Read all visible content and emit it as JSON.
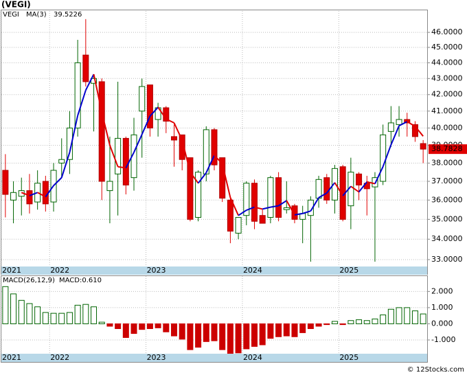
{
  "chart_data": [
    {
      "type": "candlestick",
      "title": "(VEGI)",
      "name": "VEGI",
      "categories": [
        "2021",
        null,
        null,
        null,
        null,
        null,
        "2022",
        null,
        null,
        null,
        null,
        null,
        null,
        null,
        null,
        null,
        null,
        null,
        "2023",
        null,
        null,
        null,
        null,
        null,
        null,
        null,
        null,
        null,
        null,
        null,
        "2024",
        null,
        null,
        null,
        null,
        null,
        null,
        null,
        null,
        null,
        null,
        null,
        "2025",
        null,
        null,
        null,
        null,
        null,
        null,
        null,
        null,
        null,
        null
      ],
      "open": [
        37.6,
        36.0,
        36.2,
        36.5,
        35.9,
        37.0,
        35.9,
        38.0,
        38.2,
        40.0,
        44.5,
        42.7,
        42.8,
        36.5,
        37.4,
        39.4,
        37.2,
        41.0,
        42.6,
        40.5,
        41.2,
        39.5,
        39.6,
        38.3,
        35.1,
        37.4,
        39.9,
        38.3,
        36.0,
        34.3,
        35.2,
        36.9,
        35.2,
        35.1,
        37.2,
        35.5,
        35.7,
        35.0,
        35.2,
        36.1,
        37.2,
        36.0,
        37.8,
        35.7,
        37.4,
        36.9,
        36.7,
        37.0,
        39.8,
        40.2,
        40.5,
        40.2,
        39.1
      ],
      "high": [
        38.5,
        37.0,
        37.2,
        37.4,
        37.6,
        37.3,
        38.0,
        39.4,
        41.0,
        45.5,
        46.9,
        43.2,
        43.0,
        39.5,
        42.8,
        39.5,
        40.6,
        43.0,
        42.6,
        41.5,
        41.3,
        40.2,
        39.6,
        38.3,
        37.6,
        40.1,
        40.0,
        38.3,
        36.1,
        35.0,
        37.0,
        37.1,
        35.5,
        37.3,
        37.5,
        37.0,
        35.8,
        35.7,
        36.2,
        37.3,
        37.4,
        37.9,
        37.9,
        38.3,
        37.5,
        37.3,
        37.5,
        40.2,
        41.3,
        41.3,
        40.9,
        40.4,
        39.3
      ],
      "low": [
        35.1,
        34.8,
        35.2,
        35.3,
        35.5,
        35.4,
        35.4,
        37.2,
        37.4,
        39.5,
        42.5,
        39.8,
        36.0,
        34.8,
        35.2,
        36.3,
        36.5,
        38.3,
        39.5,
        39.5,
        39.7,
        37.8,
        37.6,
        34.9,
        34.9,
        37.0,
        37.6,
        35.9,
        33.8,
        34.0,
        34.7,
        34.5,
        34.8,
        34.8,
        34.9,
        35.3,
        34.8,
        33.8,
        32.9,
        35.6,
        35.8,
        35.3,
        34.9,
        34.5,
        36.0,
        35.2,
        32.9,
        36.8,
        38.9,
        39.5,
        39.5,
        39.2,
        38.0
      ],
      "close": [
        36.3,
        36.4,
        36.5,
        35.8,
        36.9,
        35.8,
        37.6,
        38.2,
        40.0,
        44.0,
        42.8,
        43.0,
        37.0,
        37.0,
        39.4,
        36.8,
        39.6,
        42.5,
        40.0,
        41.2,
        40.4,
        39.3,
        38.2,
        35.0,
        37.5,
        39.9,
        37.9,
        36.1,
        34.4,
        35.1,
        36.9,
        34.9,
        34.8,
        37.2,
        35.1,
        35.6,
        35.0,
        35.3,
        36.0,
        37.1,
        36.0,
        37.7,
        35.0,
        37.5,
        36.8,
        36.6,
        37.2,
        39.6,
        40.3,
        40.5,
        40.3,
        39.5,
        38.7828
      ],
      "ma_name": "MA(3)",
      "ma": [
        null,
        null,
        36.4,
        36.23,
        36.4,
        36.17,
        36.77,
        37.2,
        38.6,
        40.73,
        42.27,
        43.27,
        40.93,
        39.0,
        37.8,
        37.73,
        38.6,
        39.63,
        40.7,
        41.23,
        40.53,
        40.3,
        39.3,
        37.5,
        36.9,
        37.47,
        38.43,
        37.97,
        36.13,
        35.2,
        35.47,
        35.63,
        35.53,
        35.63,
        35.7,
        35.97,
        35.23,
        35.3,
        35.43,
        36.13,
        36.37,
        36.93,
        36.23,
        36.73,
        36.43,
        36.97,
        36.87,
        37.8,
        39.03,
        40.13,
        40.37,
        40.1,
        39.5226
      ],
      "ylim": [
        32.67,
        47.46
      ],
      "log_scale": true,
      "grid": true,
      "yticks": [
        {
          "value": 33,
          "label": "33.0000"
        },
        {
          "value": 34,
          "label": "34.0000"
        },
        {
          "value": 35,
          "label": "35.0000"
        },
        {
          "value": 36,
          "label": "36.0000"
        },
        {
          "value": 37,
          "label": "37.0000"
        },
        {
          "value": 38,
          "label": "38.0000"
        },
        {
          "value": 39,
          "label": "39.0000"
        },
        {
          "value": 40,
          "label": "40.0000"
        },
        {
          "value": 41,
          "label": "41.0000"
        },
        {
          "value": 42,
          "label": "42.0000"
        },
        {
          "value": 43,
          "label": "43.0000"
        },
        {
          "value": 44,
          "label": "44.0000"
        },
        {
          "value": 45,
          "label": "45.0000"
        },
        {
          "value": 46,
          "label": "46.0000"
        }
      ],
      "up_color": "#006400",
      "down_color": "#e00000",
      "ma_up_color": "#0000cc",
      "ma_down_color": "#e00000",
      "name_color": "#008000"
    },
    {
      "type": "bar",
      "title": "MACD(26,12,9)",
      "legend_label": "MACD:0.610",
      "categories": [
        "2021",
        null,
        null,
        null,
        null,
        null,
        "2022",
        null,
        null,
        null,
        null,
        null,
        null,
        null,
        null,
        null,
        null,
        null,
        "2023",
        null,
        null,
        null,
        null,
        null,
        null,
        null,
        null,
        null,
        null,
        null,
        "2024",
        null,
        null,
        null,
        null,
        null,
        null,
        null,
        null,
        null,
        null,
        null,
        "2025",
        null,
        null,
        null,
        null,
        null,
        null,
        null,
        null,
        null,
        null
      ],
      "values": [
        2.3,
        1.85,
        1.45,
        1.25,
        1.05,
        0.7,
        0.65,
        0.65,
        0.7,
        1.15,
        1.2,
        1.05,
        0.1,
        -0.15,
        -0.3,
        -0.85,
        -0.6,
        -0.35,
        -0.3,
        -0.25,
        -0.5,
        -0.75,
        -0.95,
        -1.6,
        -1.45,
        -1.1,
        -1.05,
        -1.6,
        -1.85,
        -1.8,
        -1.55,
        -1.4,
        -1.3,
        -0.9,
        -0.8,
        -0.75,
        -0.8,
        -0.55,
        -0.3,
        -0.15,
        -0.05,
        0.15,
        -0.05,
        0.2,
        0.25,
        0.2,
        0.3,
        0.55,
        0.9,
        1.0,
        1.0,
        0.8,
        0.61
      ],
      "ylim": [
        -1.85,
        2.95
      ],
      "grid": true,
      "yticks": [
        {
          "value": -1,
          "label": "-1.000"
        },
        {
          "value": 0,
          "label": "0.000"
        },
        {
          "value": 1,
          "label": "1.000"
        },
        {
          "value": 2,
          "label": "2.000"
        }
      ],
      "up_color": "#006400",
      "down_color": "#cc0000"
    }
  ]
}
